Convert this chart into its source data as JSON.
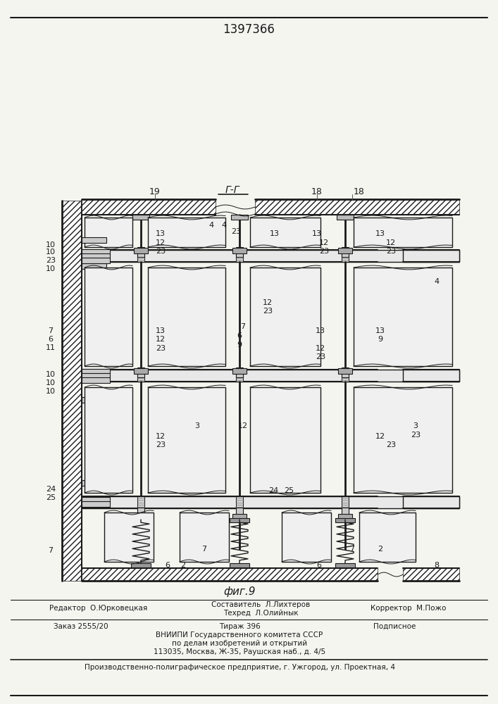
{
  "patent_number": "1397366",
  "figure_label": "фиг.9",
  "section_label": "Г-Г",
  "bg_color": "#f5f5f0",
  "drawing_color": "#1a1a1a",
  "footer": {
    "editor": "Редактор  О.Юрковецкая",
    "compiler_line1": "Составитель  Л.Лихтеров",
    "compiler_line2": "Техред  Л.Олийнык",
    "corrector": "Корректор  М.Пожо",
    "order": "Заказ 2555/20",
    "circulation": "Тираж 396",
    "subscription": "Подписное",
    "org1": "ВНИИПИ Государственного комитета СССР",
    "org2": "по делам изобретений и открытий",
    "org3": "113035, Москва, Ж-35, Раушская наб., д. 4/5",
    "enterprise": "Производственно-полиграфическое предприятие, г. Ужгород, ул. Проектная, 4"
  }
}
